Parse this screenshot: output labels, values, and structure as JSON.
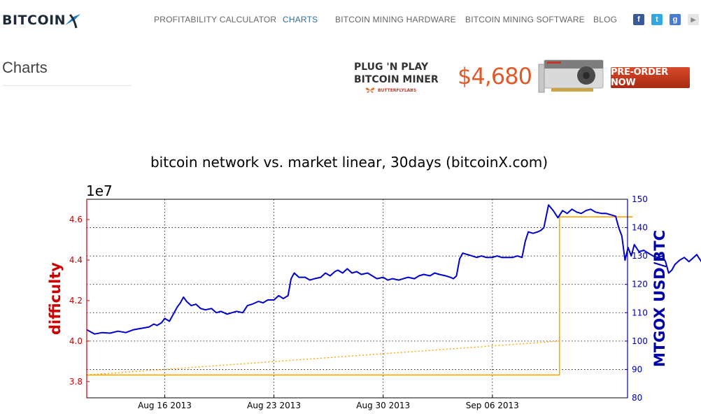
{
  "header": {
    "logo_text": "BITCOIN",
    "nav": [
      {
        "label": "PROFITABILITY CALCULATOR",
        "active": false
      },
      {
        "label": "CHARTS",
        "active": true
      },
      {
        "label": "BITCOIN MINING HARDWARE",
        "active": false
      },
      {
        "label": "BITCOIN MINING SOFTWARE",
        "active": false
      },
      {
        "label": "BLOG",
        "active": false
      }
    ],
    "social": [
      {
        "icon": "facebook-icon",
        "glyph": "f",
        "color": "#3b5998"
      },
      {
        "icon": "twitter-icon",
        "glyph": "t",
        "color": "#2fa9e0"
      },
      {
        "icon": "google-plus-icon",
        "glyph": "g",
        "color": "#4a7bd2"
      },
      {
        "icon": "youtube-icon",
        "glyph": "▶",
        "color": "#e6e6e6"
      }
    ]
  },
  "page": {
    "title": "Charts"
  },
  "ad": {
    "headline_1": "PLUG 'N PLAY",
    "headline_2": "BITCOIN MINER",
    "brand": "BUTTERFLYLABS",
    "price": "$4,680",
    "cta": "PRE-ORDER NOW"
  },
  "chart_data": {
    "type": "line",
    "title": "bitcoin network vs. market linear, 30days (bitcoinX.com)",
    "x_ticks": [
      "Aug 16 2013",
      "Aug 23 2013",
      "Aug 30 2013",
      "Sep 06 2013"
    ],
    "xlim_days": [
      0,
      35
    ],
    "x_tick_days": [
      5,
      12,
      19,
      26
    ],
    "grid": true,
    "left_axis": {
      "label": "difficulty",
      "offset_text": "1e7",
      "ticks": [
        "3.8",
        "4.0",
        "4.2",
        "4.4",
        "4.6"
      ],
      "tick_values": [
        3.8,
        4.0,
        4.2,
        4.4,
        4.6
      ],
      "range": [
        3.72,
        4.7
      ],
      "color": "#cc0000"
    },
    "right_axis": {
      "label": "MTGOX USD/BTC",
      "ticks": [
        "80",
        "90",
        "100",
        "110",
        "120",
        "130",
        "140",
        "150"
      ],
      "tick_values": [
        80,
        90,
        100,
        110,
        120,
        130,
        140,
        150
      ],
      "range": [
        80,
        150
      ],
      "color": "#0000aa"
    },
    "series": [
      {
        "style": "solid",
        "color": "#cc0000",
        "axis": "left",
        "points": [
          [
            0,
            3.833
          ],
          [
            30.3,
            3.833
          ],
          [
            30.3,
            4.613
          ],
          [
            35,
            4.613
          ]
        ]
      },
      {
        "style": "solid",
        "color": "#ffa500",
        "axis": "left",
        "points": [
          [
            0,
            3.833
          ],
          [
            30.3,
            3.833
          ],
          [
            30.3,
            4.613
          ],
          [
            35,
            4.613
          ]
        ]
      },
      {
        "style": "dotted",
        "color": "#ffa500",
        "axis": "left",
        "points": [
          [
            0,
            3.833
          ],
          [
            30.3,
            4.0
          ]
        ]
      },
      {
        "style": "solid",
        "color": "#0000cc",
        "axis": "right",
        "points": [
          [
            0,
            104
          ],
          [
            0.5,
            102.5
          ],
          [
            1,
            103
          ],
          [
            1.5,
            102.8
          ],
          [
            2,
            103.5
          ],
          [
            2.5,
            103
          ],
          [
            3,
            104
          ],
          [
            3.5,
            104.5
          ],
          [
            4,
            105
          ],
          [
            4.3,
            106
          ],
          [
            4.5,
            105.5
          ],
          [
            4.8,
            106.5
          ],
          [
            5,
            108
          ],
          [
            5.3,
            107
          ],
          [
            5.5,
            109
          ],
          [
            5.8,
            112
          ],
          [
            6,
            113.5
          ],
          [
            6.2,
            115.5
          ],
          [
            6.4,
            114
          ],
          [
            6.7,
            112.5
          ],
          [
            7,
            113
          ],
          [
            7.3,
            111.5
          ],
          [
            7.6,
            111
          ],
          [
            8,
            111.5
          ],
          [
            8.3,
            110
          ],
          [
            8.6,
            110.5
          ],
          [
            9,
            109.5
          ],
          [
            9.3,
            110
          ],
          [
            9.6,
            110.5
          ],
          [
            10,
            110
          ],
          [
            10.3,
            112.5
          ],
          [
            10.6,
            113
          ],
          [
            11,
            114
          ],
          [
            11.3,
            113.5
          ],
          [
            11.6,
            114.5
          ],
          [
            12,
            114.5
          ],
          [
            12.3,
            116
          ],
          [
            12.6,
            115
          ],
          [
            12.9,
            116
          ],
          [
            13.1,
            122
          ],
          [
            13.3,
            124
          ],
          [
            13.6,
            122.5
          ],
          [
            14,
            122.5
          ],
          [
            14.3,
            121.5
          ],
          [
            14.6,
            122
          ],
          [
            15,
            122.5
          ],
          [
            15.3,
            124
          ],
          [
            15.6,
            123
          ],
          [
            15.9,
            124.5
          ],
          [
            16.1,
            125
          ],
          [
            16.4,
            124
          ],
          [
            16.7,
            125.5
          ],
          [
            17,
            124
          ],
          [
            17.3,
            124.5
          ],
          [
            17.6,
            123.5
          ],
          [
            18,
            124
          ],
          [
            18.3,
            123
          ],
          [
            18.6,
            122
          ],
          [
            19,
            122.5
          ],
          [
            19.3,
            121.5
          ],
          [
            19.6,
            122
          ],
          [
            20,
            121.5
          ],
          [
            20.3,
            122
          ],
          [
            20.6,
            122.5
          ],
          [
            21,
            122
          ],
          [
            21.3,
            123
          ],
          [
            21.6,
            123.5
          ],
          [
            22,
            123
          ],
          [
            22.3,
            124
          ],
          [
            22.6,
            123.5
          ],
          [
            23,
            123
          ],
          [
            23.3,
            122.5
          ],
          [
            23.5,
            122
          ],
          [
            23.7,
            123
          ],
          [
            23.9,
            129
          ],
          [
            24.1,
            131
          ],
          [
            24.4,
            130.5
          ],
          [
            24.7,
            130
          ],
          [
            25,
            129.5
          ],
          [
            25.3,
            130
          ],
          [
            25.6,
            129.5
          ],
          [
            26,
            129.5
          ],
          [
            26.3,
            130
          ],
          [
            26.6,
            129.5
          ],
          [
            27,
            129.5
          ],
          [
            27.3,
            129.5
          ],
          [
            27.6,
            130
          ],
          [
            27.9,
            129.5
          ],
          [
            28.1,
            135
          ],
          [
            28.3,
            138.5
          ],
          [
            28.6,
            138
          ],
          [
            28.9,
            138.5
          ],
          [
            29.1,
            139
          ],
          [
            29.3,
            140
          ],
          [
            29.6,
            148
          ],
          [
            29.9,
            146
          ],
          [
            30.2,
            143.5
          ],
          [
            30.5,
            146
          ],
          [
            30.8,
            145
          ],
          [
            31.1,
            146.5
          ],
          [
            31.4,
            145.5
          ],
          [
            31.7,
            145
          ],
          [
            32,
            146
          ],
          [
            32.3,
            146.5
          ],
          [
            32.6,
            145.5
          ],
          [
            33,
            145
          ],
          [
            33.3,
            145
          ],
          [
            33.6,
            144.5
          ],
          [
            33.9,
            144
          ],
          [
            34.1,
            140
          ],
          [
            34.3,
            137
          ],
          [
            34.5,
            128.5
          ],
          [
            34.7,
            133
          ],
          [
            34.9,
            130
          ],
          [
            35.1,
            134
          ],
          [
            35.4,
            131.5
          ],
          [
            35.7,
            132
          ],
          [
            36,
            131
          ],
          [
            36.3,
            130
          ],
          [
            36.6,
            129.5
          ],
          [
            36.9,
            130
          ],
          [
            37.1,
            128
          ],
          [
            37.3,
            124
          ],
          [
            37.5,
            125
          ],
          [
            37.7,
            127
          ],
          [
            38,
            128.5
          ],
          [
            38.3,
            129.5
          ],
          [
            38.6,
            128
          ],
          [
            38.9,
            129.5
          ],
          [
            39.1,
            130.5
          ],
          [
            39.4,
            128
          ],
          [
            39.7,
            127
          ]
        ]
      }
    ]
  }
}
